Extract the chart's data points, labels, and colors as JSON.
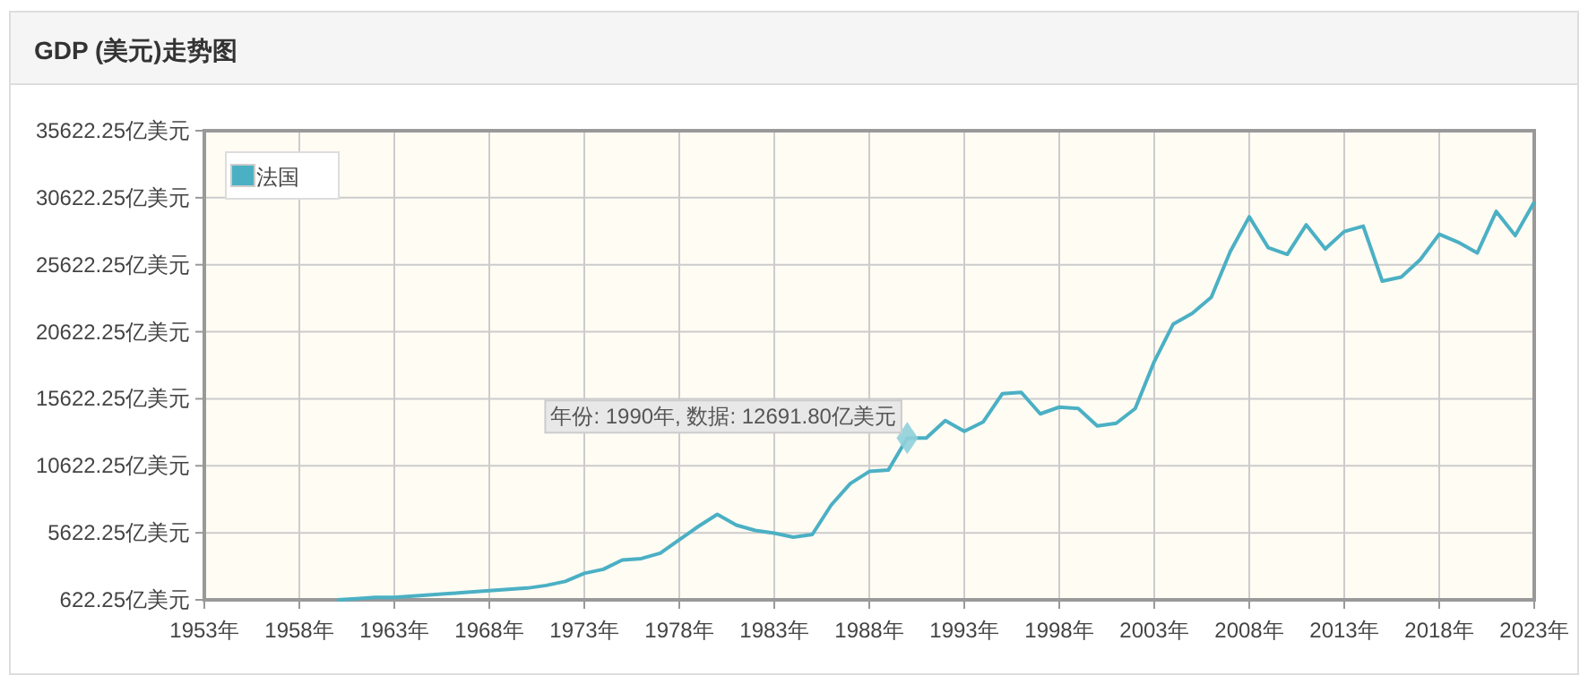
{
  "chart_data": {
    "type": "line",
    "title": "GDP (美元)走势图",
    "x": [
      1960,
      1961,
      1962,
      1963,
      1964,
      1965,
      1966,
      1967,
      1968,
      1969,
      1970,
      1971,
      1972,
      1973,
      1974,
      1975,
      1976,
      1977,
      1978,
      1979,
      1980,
      1981,
      1982,
      1983,
      1984,
      1985,
      1986,
      1987,
      1988,
      1989,
      1990,
      1991,
      1992,
      1993,
      1994,
      1995,
      1996,
      1997,
      1998,
      1999,
      2000,
      2001,
      2002,
      2003,
      2004,
      2005,
      2006,
      2007,
      2008,
      2009,
      2010,
      2011,
      2012,
      2013,
      2014,
      2015,
      2016,
      2017,
      2018,
      2019,
      2020,
      2021,
      2022,
      2023
    ],
    "series": [
      {
        "name": "法国",
        "color": "#4bb0c4",
        "values": [
          622.25,
          700,
          800,
          800,
          900,
          1000,
          1100,
          1200,
          1300,
          1400,
          1500,
          1700,
          2000,
          2600,
          2900,
          3600,
          3700,
          4100,
          5100,
          6100,
          7000,
          6200,
          5800,
          5600,
          5300,
          5500,
          7700,
          9300,
          10200,
          10300,
          12691.8,
          12700,
          14000,
          13200,
          13900,
          16000,
          16100,
          14500,
          15000,
          14900,
          13600,
          13800,
          14900,
          18400,
          21200,
          22000,
          23200,
          26600,
          29200,
          26900,
          26400,
          28600,
          26800,
          28100,
          28500,
          24400,
          24700,
          26000,
          27900,
          27300,
          26500,
          29600,
          27800,
          30300
        ]
      }
    ],
    "xlim": [
      1953,
      2023
    ],
    "xticks": [
      {
        "value": 1953,
        "label": "1953年"
      },
      {
        "value": 1958,
        "label": "1958年"
      },
      {
        "value": 1963,
        "label": "1963年"
      },
      {
        "value": 1968,
        "label": "1968年"
      },
      {
        "value": 1973,
        "label": "1973年"
      },
      {
        "value": 1978,
        "label": "1978年"
      },
      {
        "value": 1983,
        "label": "1983年"
      },
      {
        "value": 1988,
        "label": "1988年"
      },
      {
        "value": 1993,
        "label": "1993年"
      },
      {
        "value": 1998,
        "label": "1998年"
      },
      {
        "value": 2003,
        "label": "2003年"
      },
      {
        "value": 2008,
        "label": "2008年"
      },
      {
        "value": 2013,
        "label": "2013年"
      },
      {
        "value": 2018,
        "label": "2018年"
      },
      {
        "value": 2023,
        "label": "2023年"
      }
    ],
    "ylim": [
      622.25,
      35622.25
    ],
    "yticks": [
      {
        "value": 622.25,
        "label": "622.25亿美元"
      },
      {
        "value": 5622.25,
        "label": "5622.25亿美元"
      },
      {
        "value": 10622.25,
        "label": "10622.25亿美元"
      },
      {
        "value": 15622.25,
        "label": "15622.25亿美元"
      },
      {
        "value": 20622.25,
        "label": "20622.25亿美元"
      },
      {
        "value": 25622.25,
        "label": "25622.25亿美元"
      },
      {
        "value": 30622.25,
        "label": "30622.25亿美元"
      },
      {
        "value": 35622.25,
        "label": "35622.25亿美元"
      }
    ],
    "grid": true,
    "legend": "top left",
    "marker": "none",
    "line_style": "solid",
    "annotations": [
      {
        "text": "年份: 1990年, 数据: 12691.80亿美元",
        "x": 1990,
        "y": 12691.8
      }
    ]
  }
}
